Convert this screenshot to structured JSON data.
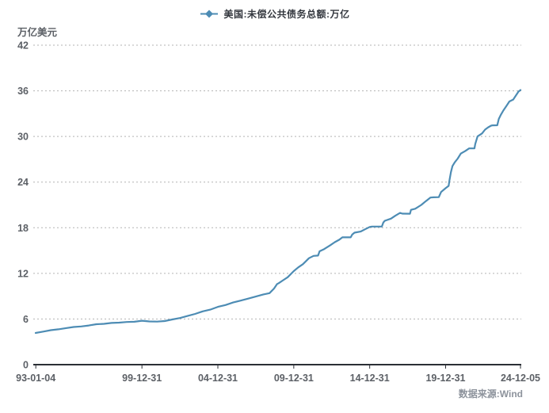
{
  "legend": {
    "series_label": "美国:未偿公共债务总额:万亿"
  },
  "axes": {
    "unit_label": "万亿美元"
  },
  "footer": {
    "source_label": "数据来源:Wind"
  },
  "colors": {
    "line": "#4d8cb4",
    "grid": "#b3b3b3",
    "axis": "#2b2f36",
    "tick_label": "#5c6066",
    "legend_text": "#34383f",
    "source_text": "#8d939c",
    "background": "#ffffff"
  },
  "chart_data": {
    "type": "line",
    "title": "",
    "xlabel": "",
    "ylabel": "万亿美元",
    "ylim": [
      0,
      42
    ],
    "yticks": [
      0,
      6,
      12,
      18,
      24,
      30,
      36,
      42
    ],
    "xlim": [
      1993.0,
      2024.93
    ],
    "x_ticks": [
      {
        "label": "93-01-04",
        "year": 1993.01
      },
      {
        "label": "99-12-31",
        "year": 2000.0
      },
      {
        "label": "04-12-31",
        "year": 2005.0
      },
      {
        "label": "09-12-31",
        "year": 2010.0
      },
      {
        "label": "14-12-31",
        "year": 2015.0
      },
      {
        "label": "19-12-31",
        "year": 2020.0
      },
      {
        "label": "24-12-05",
        "year": 2024.93
      }
    ],
    "grid": "horizontal-dotted",
    "legend_position": "top-center",
    "source": "数据来源:Wind",
    "series": [
      {
        "name": "美国:未偿公共债务总额:万亿",
        "color": "#4d8cb4",
        "points": [
          [
            1993.0,
            4.17
          ],
          [
            1993.5,
            4.35
          ],
          [
            1994.0,
            4.53
          ],
          [
            1994.5,
            4.65
          ],
          [
            1995.0,
            4.8
          ],
          [
            1995.5,
            4.95
          ],
          [
            1996.0,
            5.02
          ],
          [
            1996.5,
            5.15
          ],
          [
            1997.0,
            5.32
          ],
          [
            1997.5,
            5.37
          ],
          [
            1998.0,
            5.48
          ],
          [
            1998.5,
            5.52
          ],
          [
            1999.0,
            5.61
          ],
          [
            1999.5,
            5.64
          ],
          [
            2000.0,
            5.77
          ],
          [
            2000.5,
            5.68
          ],
          [
            2001.0,
            5.66
          ],
          [
            2001.5,
            5.73
          ],
          [
            2002.0,
            5.94
          ],
          [
            2002.5,
            6.13
          ],
          [
            2003.0,
            6.4
          ],
          [
            2003.5,
            6.67
          ],
          [
            2004.0,
            7.0
          ],
          [
            2004.5,
            7.23
          ],
          [
            2005.0,
            7.6
          ],
          [
            2005.5,
            7.84
          ],
          [
            2006.0,
            8.17
          ],
          [
            2006.5,
            8.42
          ],
          [
            2007.0,
            8.68
          ],
          [
            2007.5,
            8.95
          ],
          [
            2008.0,
            9.23
          ],
          [
            2008.4,
            9.4
          ],
          [
            2008.7,
            10.0
          ],
          [
            2008.9,
            10.6
          ],
          [
            2009.0,
            10.7
          ],
          [
            2009.3,
            11.1
          ],
          [
            2009.6,
            11.5
          ],
          [
            2009.9,
            12.1
          ],
          [
            2010.0,
            12.3
          ],
          [
            2010.3,
            12.8
          ],
          [
            2010.6,
            13.2
          ],
          [
            2011.0,
            14.0
          ],
          [
            2011.3,
            14.3
          ],
          [
            2011.6,
            14.34
          ],
          [
            2011.7,
            14.9
          ],
          [
            2012.0,
            15.2
          ],
          [
            2012.4,
            15.7
          ],
          [
            2012.7,
            16.1
          ],
          [
            2013.0,
            16.43
          ],
          [
            2013.2,
            16.74
          ],
          [
            2013.75,
            16.74
          ],
          [
            2013.85,
            17.1
          ],
          [
            2014.0,
            17.35
          ],
          [
            2014.4,
            17.5
          ],
          [
            2014.7,
            17.8
          ],
          [
            2015.0,
            18.1
          ],
          [
            2015.15,
            18.15
          ],
          [
            2015.8,
            18.15
          ],
          [
            2015.9,
            18.7
          ],
          [
            2016.0,
            18.92
          ],
          [
            2016.4,
            19.2
          ],
          [
            2016.7,
            19.6
          ],
          [
            2017.0,
            19.95
          ],
          [
            2017.15,
            19.85
          ],
          [
            2017.65,
            19.84
          ],
          [
            2017.72,
            20.35
          ],
          [
            2018.0,
            20.5
          ],
          [
            2018.4,
            21.0
          ],
          [
            2018.7,
            21.5
          ],
          [
            2019.0,
            21.97
          ],
          [
            2019.2,
            22.0
          ],
          [
            2019.55,
            22.02
          ],
          [
            2019.7,
            22.7
          ],
          [
            2020.0,
            23.2
          ],
          [
            2020.2,
            23.5
          ],
          [
            2020.25,
            24.2
          ],
          [
            2020.35,
            25.3
          ],
          [
            2020.45,
            26.1
          ],
          [
            2020.6,
            26.6
          ],
          [
            2020.8,
            27.1
          ],
          [
            2021.0,
            27.75
          ],
          [
            2021.3,
            28.1
          ],
          [
            2021.55,
            28.43
          ],
          [
            2021.9,
            28.43
          ],
          [
            2021.95,
            29.0
          ],
          [
            2022.1,
            30.0
          ],
          [
            2022.4,
            30.4
          ],
          [
            2022.6,
            30.9
          ],
          [
            2022.8,
            31.2
          ],
          [
            2023.0,
            31.42
          ],
          [
            2023.1,
            31.46
          ],
          [
            2023.4,
            31.47
          ],
          [
            2023.5,
            32.3
          ],
          [
            2023.65,
            32.9
          ],
          [
            2023.8,
            33.4
          ],
          [
            2024.0,
            34.0
          ],
          [
            2024.2,
            34.6
          ],
          [
            2024.45,
            34.85
          ],
          [
            2024.6,
            35.3
          ],
          [
            2024.8,
            35.9
          ],
          [
            2024.93,
            36.1
          ]
        ]
      }
    ]
  }
}
